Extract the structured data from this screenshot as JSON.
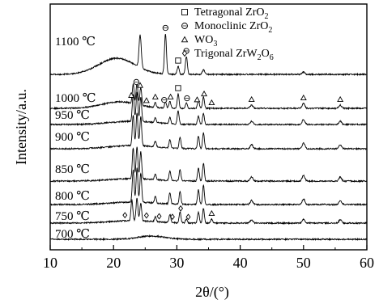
{
  "chart_data": {
    "type": "line",
    "title": "",
    "xlabel": "2θ/(°)",
    "ylabel": "Intensity/a.u.",
    "xlim": [
      10,
      60
    ],
    "xticks": [
      10,
      20,
      30,
      40,
      50,
      60
    ],
    "y_axis_ticks": false,
    "grid": false,
    "legend_position": "top-right",
    "legend": [
      {
        "symbol": "square",
        "label": "Tetragonal ZrO",
        "sub": "2",
        "tail": ""
      },
      {
        "symbol": "circle",
        "label": "Monoclinic ZrO",
        "sub": "2",
        "tail": ""
      },
      {
        "symbol": "triangle",
        "label": "WO",
        "sub": "3",
        "tail": ""
      },
      {
        "symbol": "diamond",
        "label": "Trigonal ZrW",
        "sub": "2",
        "tail": "O",
        "sub2": "6"
      }
    ],
    "series": [
      {
        "name": "700 ℃",
        "baseline": 0,
        "broad": [
          {
            "x": 26,
            "h": 4,
            "w": 3
          }
        ],
        "peaks": []
      },
      {
        "name": "750 ℃",
        "baseline": 20,
        "broad": [
          {
            "x": 23,
            "h": 3,
            "w": 5
          }
        ],
        "peaks": [
          {
            "x": 22.9,
            "h": 26,
            "w": 0.2
          },
          {
            "x": 23.7,
            "h": 28,
            "w": 0.2
          },
          {
            "x": 24.3,
            "h": 22,
            "w": 0.2
          },
          {
            "x": 26.6,
            "h": 6,
            "w": 0.2
          },
          {
            "x": 28.9,
            "h": 10,
            "w": 0.2
          },
          {
            "x": 30.5,
            "h": 14,
            "w": 0.2
          },
          {
            "x": 31.5,
            "h": 5,
            "w": 0.2
          },
          {
            "x": 33.4,
            "h": 14,
            "w": 0.2
          },
          {
            "x": 34.2,
            "h": 18,
            "w": 0.2
          },
          {
            "x": 35.5,
            "h": 5,
            "w": 0.2
          },
          {
            "x": 41.8,
            "h": 4,
            "w": 0.3
          },
          {
            "x": 50.0,
            "h": 5,
            "w": 0.3
          },
          {
            "x": 55.8,
            "h": 4,
            "w": 0.3
          }
        ]
      },
      {
        "name": "800 ℃",
        "baseline": 43,
        "broad": [
          {
            "x": 23,
            "h": 3,
            "w": 5
          }
        ],
        "peaks": [
          {
            "x": 23.1,
            "h": 40,
            "w": 0.2
          },
          {
            "x": 23.7,
            "h": 42,
            "w": 0.2
          },
          {
            "x": 24.3,
            "h": 36,
            "w": 0.2
          },
          {
            "x": 26.6,
            "h": 8,
            "w": 0.2
          },
          {
            "x": 28.9,
            "h": 14,
            "w": 0.2
          },
          {
            "x": 30.5,
            "h": 16,
            "w": 0.2
          },
          {
            "x": 33.4,
            "h": 18,
            "w": 0.2
          },
          {
            "x": 34.2,
            "h": 24,
            "w": 0.2
          },
          {
            "x": 41.8,
            "h": 5,
            "w": 0.3
          },
          {
            "x": 50.0,
            "h": 7,
            "w": 0.3
          },
          {
            "x": 55.8,
            "h": 5,
            "w": 0.3
          }
        ]
      },
      {
        "name": "850 ℃",
        "baseline": 72,
        "broad": [
          {
            "x": 23,
            "h": 3,
            "w": 5
          }
        ],
        "peaks": [
          {
            "x": 23.1,
            "h": 38,
            "w": 0.2
          },
          {
            "x": 23.7,
            "h": 40,
            "w": 0.2
          },
          {
            "x": 24.3,
            "h": 34,
            "w": 0.2
          },
          {
            "x": 26.6,
            "h": 7,
            "w": 0.2
          },
          {
            "x": 28.9,
            "h": 12,
            "w": 0.2
          },
          {
            "x": 30.5,
            "h": 14,
            "w": 0.2
          },
          {
            "x": 33.4,
            "h": 16,
            "w": 0.2
          },
          {
            "x": 34.2,
            "h": 22,
            "w": 0.2
          },
          {
            "x": 41.8,
            "h": 5,
            "w": 0.3
          },
          {
            "x": 50.0,
            "h": 7,
            "w": 0.3
          },
          {
            "x": 55.8,
            "h": 5,
            "w": 0.3
          }
        ]
      },
      {
        "name": "900 ℃",
        "baseline": 112,
        "broad": [
          {
            "x": 23,
            "h": 4,
            "w": 5
          }
        ],
        "peaks": [
          {
            "x": 23.1,
            "h": 38,
            "w": 0.2
          },
          {
            "x": 23.7,
            "h": 40,
            "w": 0.2
          },
          {
            "x": 24.3,
            "h": 36,
            "w": 0.2
          },
          {
            "x": 26.6,
            "h": 7,
            "w": 0.2
          },
          {
            "x": 28.9,
            "h": 10,
            "w": 0.2
          },
          {
            "x": 30.5,
            "h": 14,
            "w": 0.2
          },
          {
            "x": 33.4,
            "h": 16,
            "w": 0.2
          },
          {
            "x": 34.2,
            "h": 20,
            "w": 0.2
          },
          {
            "x": 41.8,
            "h": 5,
            "w": 0.3
          },
          {
            "x": 50.0,
            "h": 7,
            "w": 0.3
          },
          {
            "x": 55.8,
            "h": 5,
            "w": 0.3
          }
        ]
      },
      {
        "name": "950 ℃",
        "baseline": 142,
        "broad": [
          {
            "x": 23,
            "h": 4,
            "w": 5
          }
        ],
        "peaks": [
          {
            "x": 23.1,
            "h": 34,
            "w": 0.2
          },
          {
            "x": 23.7,
            "h": 36,
            "w": 0.2
          },
          {
            "x": 24.3,
            "h": 30,
            "w": 0.2
          },
          {
            "x": 26.6,
            "h": 6,
            "w": 0.2
          },
          {
            "x": 28.9,
            "h": 8,
            "w": 0.2
          },
          {
            "x": 30.2,
            "h": 16,
            "w": 0.2
          },
          {
            "x": 33.4,
            "h": 10,
            "w": 0.2
          },
          {
            "x": 34.2,
            "h": 14,
            "w": 0.2
          },
          {
            "x": 41.8,
            "h": 4,
            "w": 0.3
          },
          {
            "x": 50.0,
            "h": 6,
            "w": 0.3
          },
          {
            "x": 55.8,
            "h": 4,
            "w": 0.3
          }
        ]
      },
      {
        "name": "1000 ℃",
        "baseline": 162,
        "broad": [
          {
            "x": 21,
            "h": 8,
            "w": 4
          }
        ],
        "peaks": [
          {
            "x": 23.1,
            "h": 24,
            "w": 0.2
          },
          {
            "x": 23.7,
            "h": 26,
            "w": 0.2
          },
          {
            "x": 24.3,
            "h": 22,
            "w": 0.2
          },
          {
            "x": 26.6,
            "h": 6,
            "w": 0.2
          },
          {
            "x": 28.2,
            "h": 8,
            "w": 0.2
          },
          {
            "x": 28.9,
            "h": 9,
            "w": 0.2
          },
          {
            "x": 30.2,
            "h": 18,
            "w": 0.2
          },
          {
            "x": 31.5,
            "h": 7,
            "w": 0.2
          },
          {
            "x": 33.4,
            "h": 10,
            "w": 0.2
          },
          {
            "x": 34.2,
            "h": 14,
            "w": 0.2
          },
          {
            "x": 41.8,
            "h": 4,
            "w": 0.3
          },
          {
            "x": 50.0,
            "h": 6,
            "w": 0.3
          },
          {
            "x": 55.8,
            "h": 4,
            "w": 0.3
          }
        ]
      },
      {
        "name": "1100 ℃",
        "baseline": 204,
        "broad": [
          {
            "x": 20.5,
            "h": 20,
            "w": 4
          }
        ],
        "peaks": [
          {
            "x": 24.2,
            "h": 40,
            "w": 0.25
          },
          {
            "x": 28.2,
            "h": 50,
            "w": 0.22
          },
          {
            "x": 30.2,
            "h": 10,
            "w": 0.22
          },
          {
            "x": 31.5,
            "h": 22,
            "w": 0.22
          },
          {
            "x": 34.2,
            "h": 6,
            "w": 0.25
          },
          {
            "x": 50.0,
            "h": 3,
            "w": 0.3
          }
        ]
      }
    ],
    "markers": [
      {
        "symbol": "square",
        "x": 30.2,
        "over": "1100 ℃"
      },
      {
        "symbol": "circle",
        "x": 28.2,
        "over": "1100 ℃"
      },
      {
        "symbol": "circle",
        "x": 31.5,
        "over": "1100 ℃"
      },
      {
        "symbol": "triangle",
        "x": 22.8,
        "over": "1000 ℃"
      },
      {
        "symbol": "circle",
        "x": 23.6,
        "over": "1000 ℃"
      },
      {
        "symbol": "triangle",
        "x": 24.2,
        "over": "1000 ℃"
      },
      {
        "symbol": "triangle",
        "x": 25.2,
        "over": "1000 ℃"
      },
      {
        "symbol": "triangle",
        "x": 26.6,
        "over": "1000 ℃"
      },
      {
        "symbol": "circle",
        "x": 28.0,
        "over": "1000 ℃"
      },
      {
        "symbol": "triangle",
        "x": 29.0,
        "over": "1000 ℃"
      },
      {
        "symbol": "square",
        "x": 30.2,
        "over": "1000 ℃"
      },
      {
        "symbol": "circle",
        "x": 31.6,
        "over": "1000 ℃"
      },
      {
        "symbol": "triangle",
        "x": 33.2,
        "over": "1000 ℃"
      },
      {
        "symbol": "triangle",
        "x": 34.3,
        "over": "1000 ℃"
      },
      {
        "symbol": "triangle",
        "x": 35.5,
        "over": "1000 ℃"
      },
      {
        "symbol": "triangle",
        "x": 41.8,
        "over": "1000 ℃"
      },
      {
        "symbol": "triangle",
        "x": 50.0,
        "over": "1000 ℃"
      },
      {
        "symbol": "triangle",
        "x": 55.8,
        "over": "1000 ℃"
      },
      {
        "symbol": "diamond",
        "x": 21.8,
        "over": "750 ℃"
      },
      {
        "symbol": "diamond",
        "x": 25.2,
        "over": "750 ℃"
      },
      {
        "symbol": "diamond",
        "x": 27.2,
        "over": "750 ℃"
      },
      {
        "symbol": "diamond",
        "x": 29.3,
        "over": "750 ℃"
      },
      {
        "symbol": "diamond",
        "x": 30.6,
        "over": "750 ℃"
      },
      {
        "symbol": "diamond",
        "x": 31.8,
        "over": "750 ℃"
      },
      {
        "symbol": "triangle",
        "x": 35.5,
        "over": "750 ℃"
      }
    ]
  }
}
